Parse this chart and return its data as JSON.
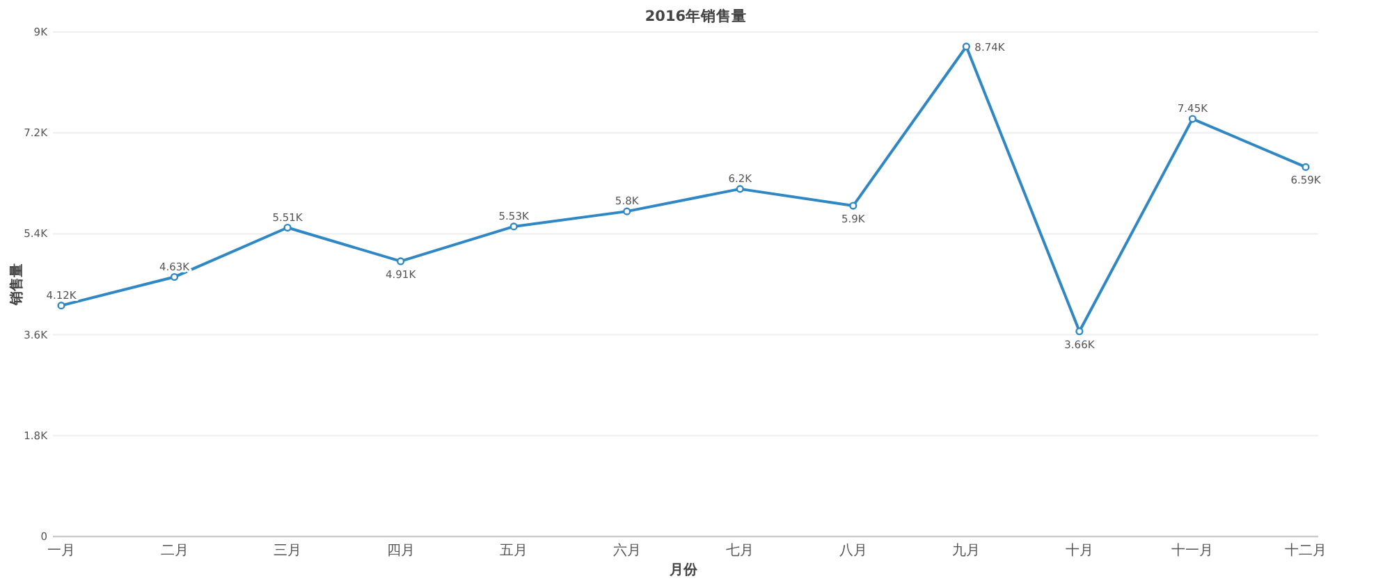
{
  "chart_data": {
    "type": "line",
    "title": "2016年销售量",
    "xlabel": "月份",
    "ylabel": "销售量",
    "categories": [
      "一月",
      "二月",
      "三月",
      "四月",
      "五月",
      "六月",
      "七月",
      "八月",
      "九月",
      "十月",
      "十一月",
      "十二月"
    ],
    "series": [
      {
        "color": "#2f87c3",
        "values": [
          4120,
          4630,
          5510,
          4910,
          5530,
          5800,
          6200,
          5900,
          8740,
          3660,
          7450,
          6590
        ],
        "value_labels": [
          "4.12K",
          "4.63K",
          "5.51K",
          "4.91K",
          "5.53K",
          "5.8K",
          "6.2K",
          "5.9K",
          "8.74K",
          "3.66K",
          "7.45K",
          "6.59K"
        ]
      }
    ],
    "ylim": [
      0,
      9000
    ],
    "yticks": [
      0,
      {
        "value": 1800,
        "label": "1.8K"
      },
      {
        "value": 3600,
        "label": "3.6K"
      },
      {
        "value": 5400,
        "label": "5.4K"
      },
      {
        "value": 7200,
        "label": "7.2K"
      },
      {
        "value": 9000,
        "label": "9K"
      }
    ],
    "grid": "y",
    "marker": "circle",
    "line_style": "solid"
  }
}
